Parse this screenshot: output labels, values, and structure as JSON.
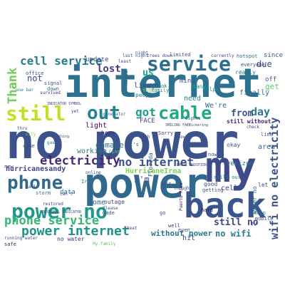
{
  "words": [
    {
      "text": "internet",
      "color": "#2c718e"
    },
    {
      "text": "no power",
      "color": "#3b528b"
    },
    {
      "text": "power",
      "color": "#31688e"
    },
    {
      "text": "my",
      "color": "#3e4a89"
    },
    {
      "text": "back",
      "color": "#3a548c"
    },
    {
      "text": "service",
      "color": "#2e6e8e"
    },
    {
      "text": "cable",
      "color": "#22a884"
    },
    {
      "text": "still",
      "color": "#c2df23"
    },
    {
      "text": "out",
      "color": "#25838e"
    },
    {
      "text": "phone",
      "color": "#31688e"
    },
    {
      "text": "power no",
      "color": "#1f988b"
    },
    {
      "text": "electricity",
      "color": "#482878"
    },
    {
      "text": "phone service",
      "color": "#35b779"
    },
    {
      "text": "power internet",
      "color": "#21918c"
    },
    {
      "text": "cell service",
      "color": "#287c8e"
    },
    {
      "text": "Thank",
      "color": "#6ece58"
    },
    {
      "text": "got",
      "color": "#1fa088"
    },
    {
      "text": "no internet",
      "color": "#3b528b"
    },
    {
      "text": "hurricanesandy",
      "color": "#404387"
    },
    {
      "text": "HurricaneIrma",
      "color": "#7ad151"
    },
    {
      "text": "without power",
      "color": "#2a788e"
    },
    {
      "text": "no wifi",
      "color": "#26828e"
    },
    {
      "text": "wifi no electricity",
      "color": "#3b528b"
    },
    {
      "text": "day",
      "color": "#2a788e"
    },
    {
      "text": "from",
      "color": "#3b528b"
    },
    {
      "text": "lost",
      "color": "#433e85"
    },
    {
      "text": "us",
      "color": "#20a386"
    },
    {
      "text": "still no",
      "color": "#3f4788"
    },
    {
      "text": "still without",
      "color": "#482475"
    },
    {
      "text": "home",
      "color": "#2e6e8e"
    },
    {
      "text": "outage",
      "color": "#414487"
    },
    {
      "text": "damage",
      "color": "#2c728e"
    },
    {
      "text": "working",
      "color": "#2a788e"
    },
    {
      "text": "light",
      "color": "#44015a"
    },
    {
      "text": "data",
      "color": "#2a788e"
    },
    {
      "text": "storm",
      "color": "#2c738e"
    },
    {
      "text": "mobile",
      "color": "#3e4989"
    },
    {
      "text": "water no",
      "color": "#2d708e"
    },
    {
      "text": "no water",
      "color": "#46327e"
    },
    {
      "text": "cell",
      "color": "#3e4989"
    },
    {
      "text": "hard",
      "color": "#440154"
    },
    {
      "text": "area",
      "color": "#31688e"
    },
    {
      "text": "city",
      "color": "#a5db36"
    },
    {
      "text": "due",
      "color": "#3f4889"
    },
    {
      "text": "get",
      "color": "#5ec962"
    },
    {
      "text": "off",
      "color": "#39568c"
    },
    {
      "text": "since",
      "color": "#3b528b"
    },
    {
      "text": "FACE",
      "color": "#3e4989"
    },
    {
      "text": "hope",
      "color": "#482878"
    },
    {
      "text": "live",
      "color": "#3f4889"
    },
    {
      "text": "people",
      "color": "#29798e"
    },
    {
      "text": "mind",
      "color": "#3b528b"
    },
    {
      "text": "need",
      "color": "#26828e"
    },
    {
      "text": "finally",
      "color": "#2f6c8e"
    },
    {
      "text": "new",
      "color": "#482475"
    },
    {
      "text": "running water",
      "color": "#3f4788"
    },
    {
      "text": "safe",
      "color": "#471164"
    },
    {
      "text": "My family",
      "color": "#5ec962"
    },
    {
      "text": "hit",
      "color": "#3e4989"
    },
    {
      "text": "many",
      "color": "#1f9e89"
    },
    {
      "text": "okay",
      "color": "#3b528b"
    },
    {
      "text": "verizon",
      "color": "#2a788e"
    },
    {
      "text": "Florida",
      "color": "#38588c"
    },
    {
      "text": "update",
      "color": "#3a548c"
    },
    {
      "text": "signal",
      "color": "#3b528b"
    },
    {
      "text": "down",
      "color": "#31688e"
    },
    {
      "text": "survived",
      "color": "#46327e"
    },
    {
      "text": "really",
      "color": "#2a788e"
    },
    {
      "text": "everyone",
      "color": "#3e4989"
    },
    {
      "text": "currently",
      "color": "#404387"
    },
    {
      "text": "hotspot",
      "color": "#2d708e"
    },
    {
      "text": "We're",
      "color": "#31688e"
    },
    {
      "text": "help",
      "color": "#21918c"
    },
    {
      "text": "good",
      "color": "#3e4989"
    },
    {
      "text": "generator",
      "color": "#31688e"
    },
    {
      "text": "food",
      "color": "#7ad151"
    },
    {
      "text": "family",
      "color": "#26828e"
    },
    {
      "text": "even",
      "color": "#3b528b"
    },
    {
      "text": "keep",
      "color": "#2c728e"
    },
    {
      "text": "well",
      "color": "#472d7b"
    },
    {
      "text": "restored",
      "color": "#3f4889"
    },
    {
      "text": "online",
      "color": "#3e4a89"
    },
    {
      "text": "Irma",
      "color": "#2a788e"
    },
    {
      "text": "Sorry",
      "color": "#46337f"
    },
    {
      "text": "let",
      "color": "#3e4a89"
    },
    {
      "text": "last night",
      "color": "#3a548c"
    },
    {
      "text": "trees down",
      "color": "#3f4889"
    },
    {
      "text": "limited",
      "color": "#3b528b"
    },
    {
      "text": "INDICATOR SYMBOL",
      "color": "#3e4989"
    },
    {
      "text": "REGIONAL INDICATOR",
      "color": "#3e4989"
    },
    {
      "text": "EMOJI MODIFIER",
      "color": "#3e4989"
    },
    {
      "text": "SMILING FACE",
      "color": "#3e4989"
    },
    {
      "text": "flickering",
      "color": "#3e4989"
    },
    {
      "text": "gas",
      "color": "#2a788e"
    },
    {
      "text": "check",
      "color": "#3f4889"
    },
    {
      "text": "office",
      "color": "#3e4989"
    },
    {
      "text": "Puerto Rico",
      "color": "#440154"
    },
    {
      "text": "one",
      "color": "#3b528b"
    },
    {
      "text": "least",
      "color": "#3e4989"
    },
    {
      "text": "ok",
      "color": "#2a788e"
    },
    {
      "text": "not",
      "color": "#3f4889"
    },
    {
      "text": "It's",
      "color": "#3e4989"
    },
    {
      "text": "fine",
      "color": "#5ec962"
    },
    {
      "text": "made",
      "color": "#3b528b"
    },
    {
      "text": "much",
      "color": "#3e4989"
    },
    {
      "text": "still out",
      "color": "#2a788e"
    },
    {
      "text": "Please",
      "color": "#3b528b"
    },
    {
      "text": "TV",
      "color": "#3e4989"
    },
    {
      "text": "can't",
      "color": "#3e4989"
    },
    {
      "text": "getting",
      "color": "#3f4889"
    },
    {
      "text": "go",
      "color": "#3b528b"
    },
    {
      "text": "I'm",
      "color": "#3a548c"
    },
    {
      "text": "thru",
      "color": "#3e4989"
    },
    {
      "text": "lights",
      "color": "#3e4989"
    },
    {
      "text": "Nothing",
      "color": "#3b528b"
    },
    {
      "text": "line",
      "color": "#3e4989"
    },
    {
      "text": "know",
      "color": "#3e4989"
    },
    {
      "text": "come",
      "color": "#3e4989"
    },
    {
      "text": "now",
      "color": "#3b528b"
    },
    {
      "text": "call",
      "color": "#3e4989"
    },
    {
      "text": "yet",
      "color": "#3e4989"
    },
    {
      "text": "one bar",
      "color": "#2a788e"
    },
    {
      "text": "house",
      "color": "#3b528b"
    },
    {
      "text": "night",
      "color": "#3e4989"
    },
    {
      "text": "wait",
      "color": "#3e4989"
    },
    {
      "text": "though",
      "color": "#3e4989"
    },
    {
      "text": "heat",
      "color": "#3e4989"
    }
  ]
}
